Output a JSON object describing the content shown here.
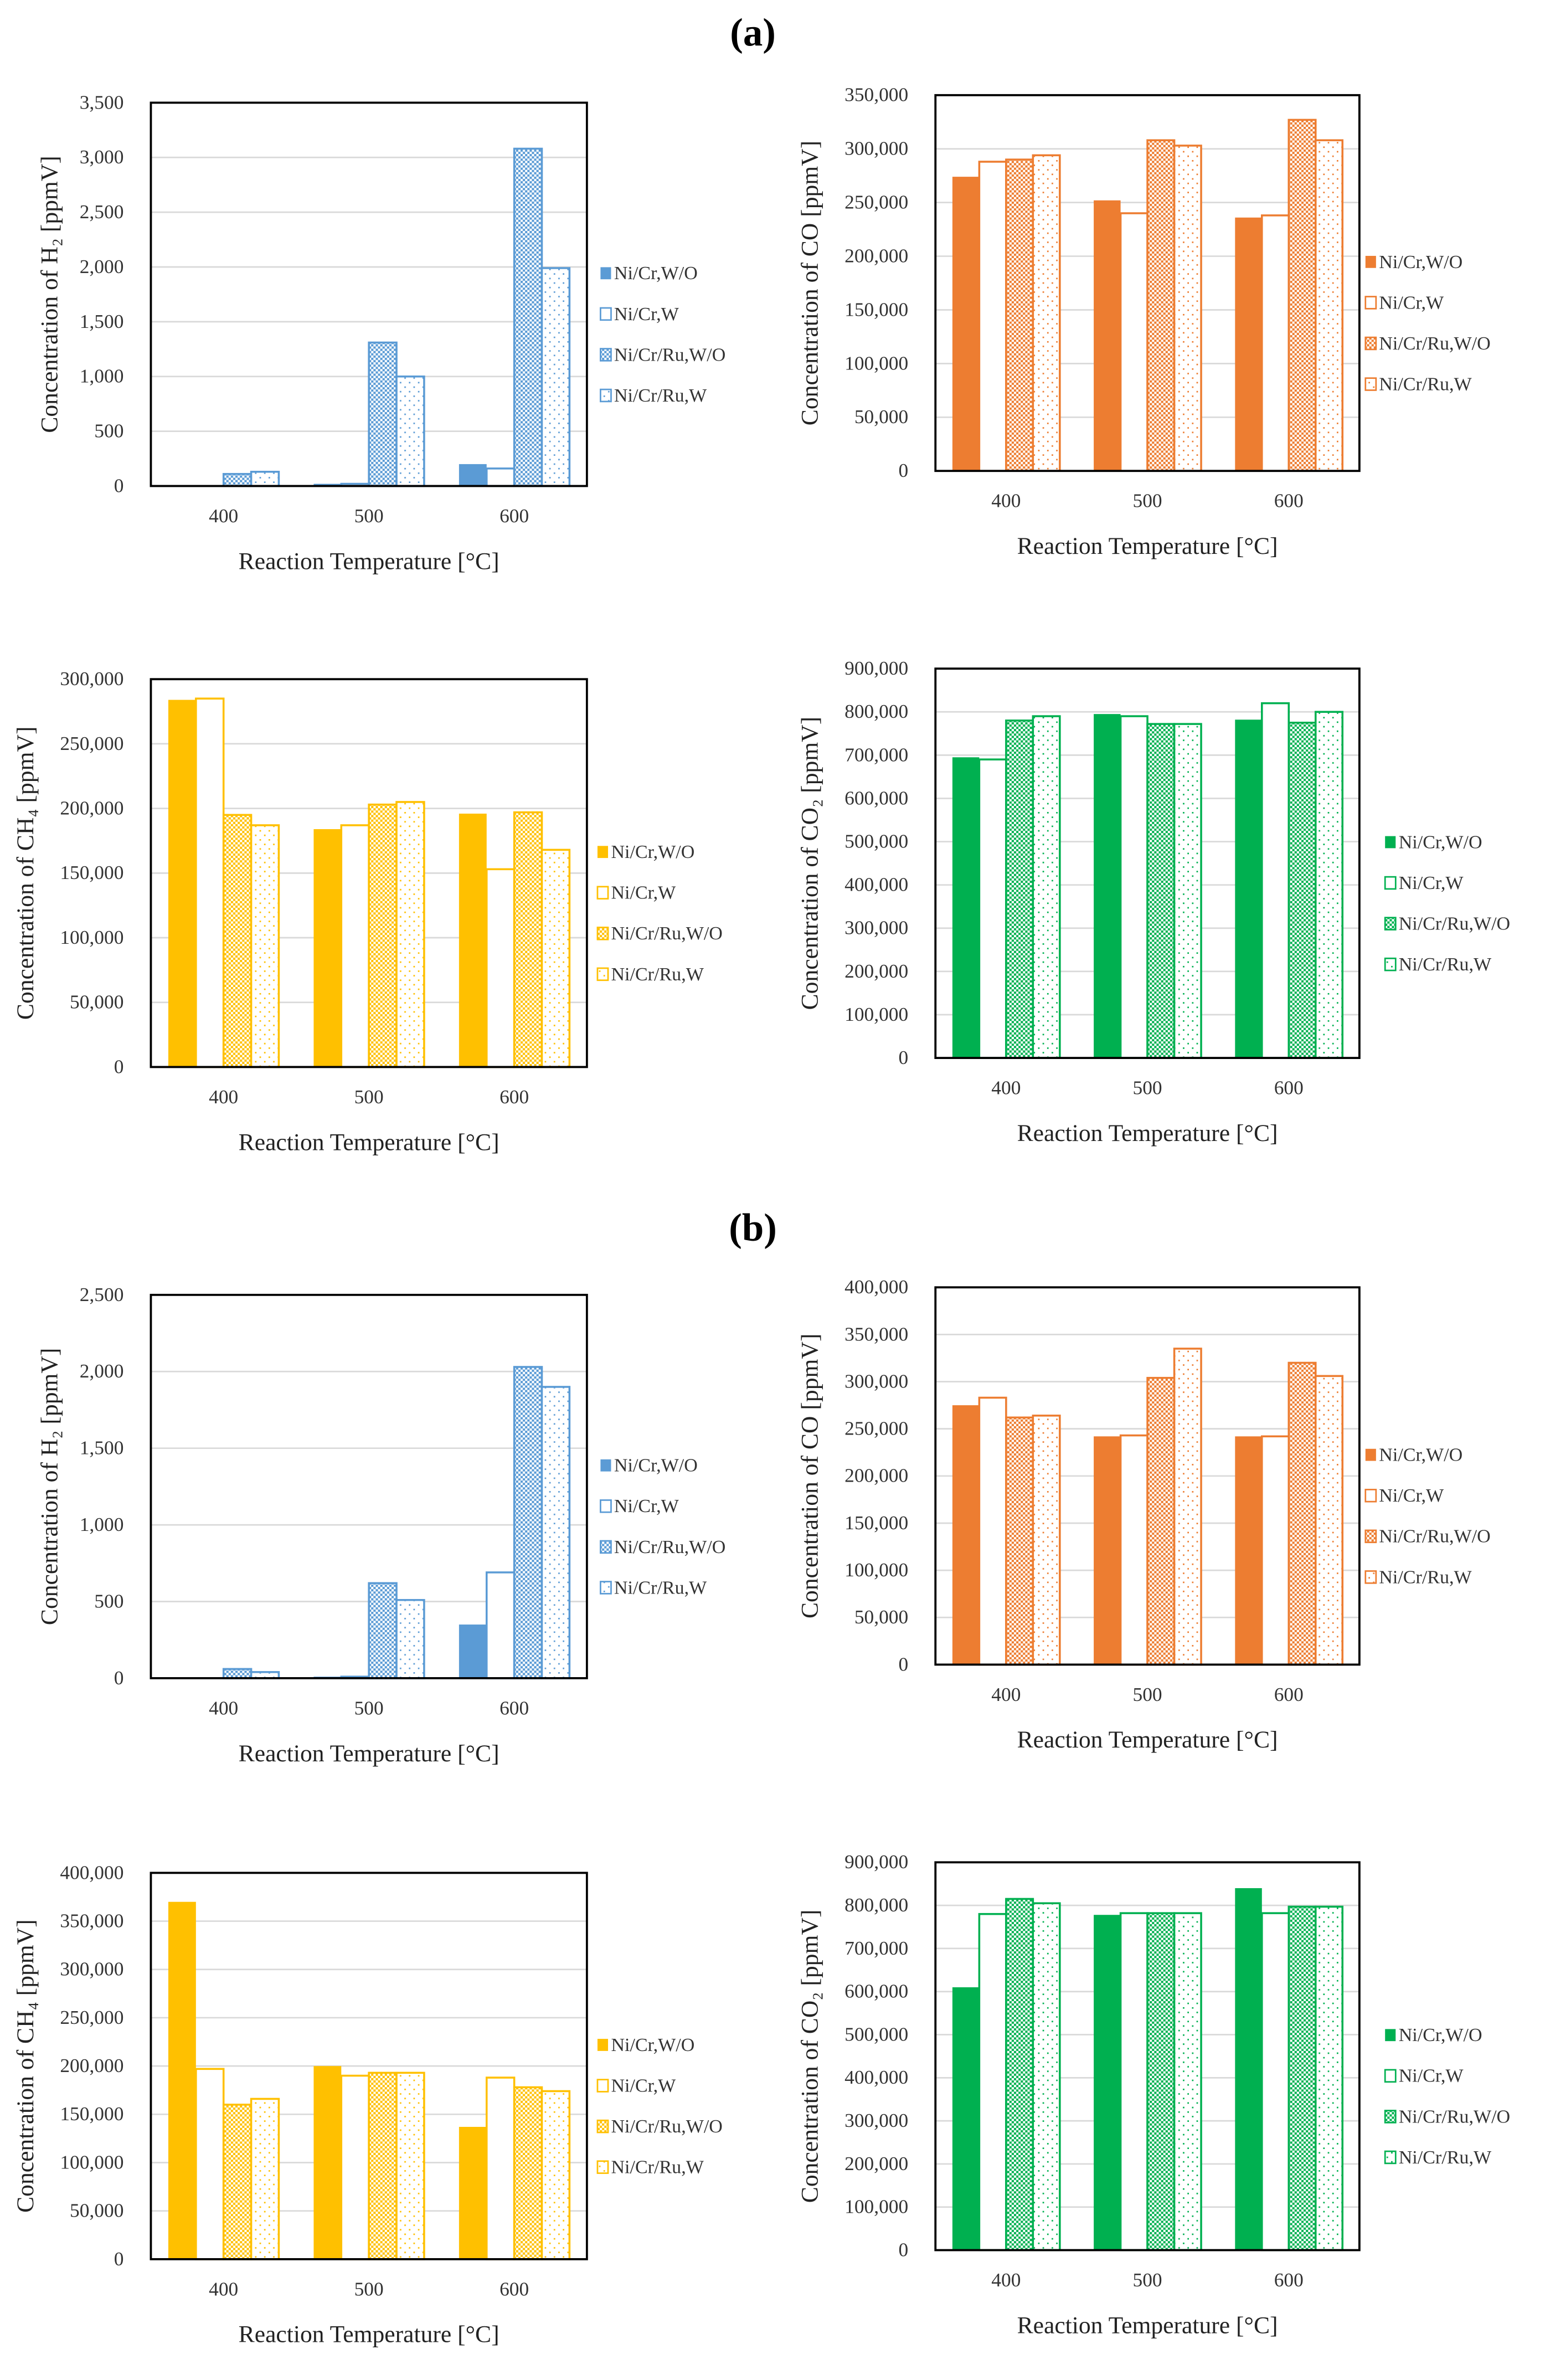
{
  "panel_labels": [
    "(a)",
    "(b)"
  ],
  "colors": {
    "h2": "#5B9BD5",
    "co": "#ED7D31",
    "ch4": "#FFC000",
    "co2": "#00B050"
  },
  "chart_data": [
    {
      "panel": "(a)",
      "type": "bar",
      "gas": "h2",
      "ylabel": "Concentration of H₂ [ppmV]",
      "xlabel": "Reaction Temperature [°C]",
      "categories": [
        "400",
        "500",
        "600"
      ],
      "ylim": [
        0,
        3500
      ],
      "ytick_step": 500,
      "grid": true,
      "legend_position": "right",
      "series": [
        {
          "name": "Ni/Cr,W/O",
          "values": [
            0,
            20,
            200
          ]
        },
        {
          "name": "Ni/Cr,W",
          "values": [
            0,
            20,
            160
          ]
        },
        {
          "name": "Ni/Cr/Ru,W/O",
          "values": [
            110,
            1310,
            3080
          ]
        },
        {
          "name": "Ni/Cr/Ru,W",
          "values": [
            130,
            1000,
            1990
          ]
        }
      ]
    },
    {
      "panel": "(a)",
      "type": "bar",
      "gas": "co",
      "ylabel": "Concentration of CO [ppmV]",
      "xlabel": "Reaction Temperature [°C]",
      "categories": [
        "400",
        "500",
        "600"
      ],
      "ylim": [
        0,
        350000
      ],
      "ytick_step": 50000,
      "grid": true,
      "legend_position": "right",
      "series": [
        {
          "name": "Ni/Cr,W/O",
          "values": [
            274000,
            252000,
            236000
          ]
        },
        {
          "name": "Ni/Cr,W",
          "values": [
            288000,
            240000,
            238000
          ]
        },
        {
          "name": "Ni/Cr/Ru,W/O",
          "values": [
            290000,
            308000,
            327000
          ]
        },
        {
          "name": "Ni/Cr/Ru,W",
          "values": [
            294000,
            303000,
            308000
          ]
        }
      ]
    },
    {
      "panel": "(a)",
      "type": "bar",
      "gas": "ch4",
      "ylabel": "Concentration of CH₄ [ppmV]",
      "xlabel": "Reaction Temperature [°C]",
      "categories": [
        "400",
        "500",
        "600"
      ],
      "ylim": [
        0,
        300000
      ],
      "ytick_step": 50000,
      "grid": true,
      "legend_position": "right",
      "series": [
        {
          "name": "Ni/Cr,W/O",
          "values": [
            284000,
            184000,
            196000
          ]
        },
        {
          "name": "Ni/Cr,W",
          "values": [
            285000,
            187000,
            153000
          ]
        },
        {
          "name": "Ni/Cr/Ru,W/O",
          "values": [
            195000,
            203000,
            197000
          ]
        },
        {
          "name": "Ni/Cr/Ru,W",
          "values": [
            187000,
            205000,
            168000
          ]
        }
      ]
    },
    {
      "panel": "(a)",
      "type": "bar",
      "gas": "co2",
      "ylabel": "Concentration of CO₂ [ppmV]",
      "xlabel": "Reaction Temperature [°C]",
      "categories": [
        "400",
        "500",
        "600"
      ],
      "ylim": [
        0,
        900000
      ],
      "ytick_step": 100000,
      "grid": true,
      "legend_position": "right",
      "series": [
        {
          "name": "Ni/Cr,W/O",
          "values": [
            695000,
            795000,
            782000
          ]
        },
        {
          "name": "Ni/Cr,W",
          "values": [
            690000,
            790000,
            820000
          ]
        },
        {
          "name": "Ni/Cr/Ru,W/O",
          "values": [
            780000,
            772000,
            775000
          ]
        },
        {
          "name": "Ni/Cr/Ru,W",
          "values": [
            790000,
            772000,
            800000
          ]
        }
      ]
    },
    {
      "panel": "(b)",
      "type": "bar",
      "gas": "h2",
      "ylabel": "Concentration of H₂ [ppmV]",
      "xlabel": "Reaction Temperature [°C]",
      "categories": [
        "400",
        "500",
        "600"
      ],
      "ylim": [
        0,
        2500
      ],
      "ytick_step": 500,
      "grid": true,
      "legend_position": "right",
      "series": [
        {
          "name": "Ni/Cr,W/O",
          "values": [
            0,
            10,
            350
          ]
        },
        {
          "name": "Ni/Cr,W",
          "values": [
            0,
            10,
            690
          ]
        },
        {
          "name": "Ni/Cr/Ru,W/O",
          "values": [
            60,
            620,
            2030
          ]
        },
        {
          "name": "Ni/Cr/Ru,W",
          "values": [
            40,
            510,
            1900
          ]
        }
      ]
    },
    {
      "panel": "(b)",
      "type": "bar",
      "gas": "co",
      "ylabel": "Concentration of CO [ppmV]",
      "xlabel": "Reaction Temperature [°C]",
      "categories": [
        "400",
        "500",
        "600"
      ],
      "ylim": [
        0,
        400000
      ],
      "ytick_step": 50000,
      "grid": true,
      "legend_position": "right",
      "series": [
        {
          "name": "Ni/Cr,W/O",
          "values": [
            275000,
            242000,
            242000
          ]
        },
        {
          "name": "Ni/Cr,W",
          "values": [
            283000,
            243000,
            242000
          ]
        },
        {
          "name": "Ni/Cr/Ru,W/O",
          "values": [
            262000,
            304000,
            320000
          ]
        },
        {
          "name": "Ni/Cr/Ru,W",
          "values": [
            264000,
            335000,
            306000
          ]
        }
      ]
    },
    {
      "panel": "(b)",
      "type": "bar",
      "gas": "ch4",
      "ylabel": "Concentration of CH₄ [ppmV]",
      "xlabel": "Reaction Temperature [°C]",
      "categories": [
        "400",
        "500",
        "600"
      ],
      "ylim": [
        0,
        400000
      ],
      "ytick_step": 50000,
      "grid": true,
      "legend_position": "right",
      "series": [
        {
          "name": "Ni/Cr,W/O",
          "values": [
            370000,
            200000,
            137000
          ]
        },
        {
          "name": "Ni/Cr,W",
          "values": [
            197000,
            190000,
            188000
          ]
        },
        {
          "name": "Ni/Cr/Ru,W/O",
          "values": [
            160000,
            193000,
            178000
          ]
        },
        {
          "name": "Ni/Cr/Ru,W",
          "values": [
            166000,
            193000,
            174000
          ]
        }
      ]
    },
    {
      "panel": "(b)",
      "type": "bar",
      "gas": "co2",
      "ylabel": "Concentration of CO₂ [ppmV]",
      "xlabel": "Reaction Temperature [°C]",
      "categories": [
        "400",
        "500",
        "600"
      ],
      "ylim": [
        0,
        900000
      ],
      "ytick_step": 100000,
      "grid": true,
      "legend_position": "right",
      "series": [
        {
          "name": "Ni/Cr,W/O",
          "values": [
            610000,
            778000,
            840000
          ]
        },
        {
          "name": "Ni/Cr,W",
          "values": [
            780000,
            782000,
            782000
          ]
        },
        {
          "name": "Ni/Cr/Ru,W/O",
          "values": [
            815000,
            782000,
            797000
          ]
        },
        {
          "name": "Ni/Cr/Ru,W",
          "values": [
            805000,
            782000,
            797000
          ]
        }
      ]
    }
  ]
}
